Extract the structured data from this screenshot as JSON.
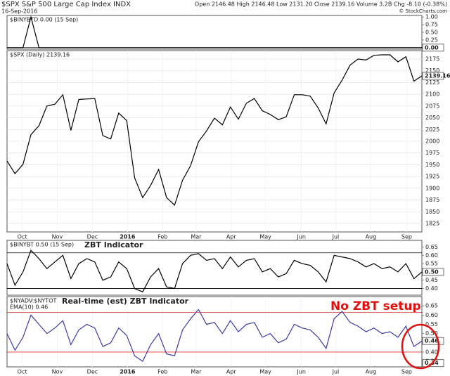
{
  "header": {
    "symbol": "$SPX S&P 500 Large Cap Index INDX",
    "date": "16-Sep-2016",
    "quote": "Open 2146.48 High 2146.48 Low 2131.20 Close 2139.16 Volume 3.2B Chg -8.10 (-0.38%)",
    "credit": "© StockCharts.com"
  },
  "chart_data": [
    {
      "type": "line",
      "legend": [
        "$BINYBTD 0.00 (15 Sep)"
      ],
      "xlim": [
        0,
        52
      ],
      "ylim": [
        -0.05,
        1.05
      ],
      "yticks": [
        {
          "value": 1,
          "label": "1.00"
        },
        {
          "value": 0.75,
          "label": "0.75"
        },
        {
          "value": 0.5,
          "label": "0.50"
        },
        {
          "value": 0.25,
          "label": "0.25"
        },
        {
          "value": 0,
          "label": "0.00"
        }
      ],
      "series": [
        {
          "color": "#000000",
          "values": [
            0,
            0,
            0,
            1,
            0,
            0,
            0,
            0,
            0,
            0,
            0,
            0,
            0,
            0,
            0,
            0,
            0,
            0,
            0,
            0,
            0,
            0,
            0,
            0,
            0,
            0,
            0,
            0,
            0,
            0,
            0,
            0,
            0,
            0,
            0,
            0,
            0,
            0,
            0,
            0,
            0,
            0,
            0,
            0,
            0,
            0,
            0,
            0,
            0,
            0,
            0,
            0,
            0
          ]
        }
      ],
      "last_label": {
        "value": 0,
        "label": "0.00"
      },
      "hlines": [
        0
      ],
      "hline_color": "#000000"
    },
    {
      "type": "line",
      "legend": [
        "$SPX (Daily) 2139.16"
      ],
      "xlim": [
        0,
        52
      ],
      "ylim": [
        1807,
        2193
      ],
      "yticks": [
        2175,
        2150,
        2125,
        2100,
        2075,
        2050,
        2025,
        2000,
        1975,
        1950,
        1925,
        1900,
        1875,
        1850,
        1825
      ],
      "xticks": [
        {
          "value": 1.9,
          "label": "Oct"
        },
        {
          "value": 6.3,
          "label": "Nov"
        },
        {
          "value": 10.7,
          "label": "Dec"
        },
        {
          "value": 15.1,
          "label": "2016"
        },
        {
          "value": 19.5,
          "label": "Feb"
        },
        {
          "value": 23.7,
          "label": "Mar"
        },
        {
          "value": 28.1,
          "label": "Apr"
        },
        {
          "value": 32.4,
          "label": "May"
        },
        {
          "value": 36.9,
          "label": "Jun"
        },
        {
          "value": 41.2,
          "label": "Jul"
        },
        {
          "value": 45.6,
          "label": "Aug"
        },
        {
          "value": 50.1,
          "label": "Sep"
        }
      ],
      "series": [
        {
          "color": "#000000",
          "values": [
            1958,
            1931,
            1951,
            2014,
            2033,
            2075,
            2079,
            2099,
            2023,
            2089,
            2090,
            2091,
            2012,
            2005,
            2060,
            2044,
            1922,
            1880,
            1906,
            1940,
            1880,
            1864,
            1917,
            1948,
            1999,
            2022,
            2049,
            2035,
            2073,
            2047,
            2081,
            2091,
            2065,
            2057,
            2046,
            2052,
            2099,
            2099,
            2096,
            2071,
            2037,
            2103,
            2130,
            2162,
            2175,
            2173,
            2183,
            2184,
            2184,
            2169,
            2180,
            2128,
            2139.16
          ]
        }
      ],
      "last_label": 2139.16,
      "grid": true
    },
    {
      "type": "line",
      "legend": [
        "$BINYBT 0.50 (15 Sep)"
      ],
      "title": "ZBT Indicator",
      "xlim": [
        0,
        52
      ],
      "ylim": [
        0.36,
        0.69
      ],
      "yticks": [
        0.65,
        {
          "value": 0.6,
          "label": "0.60"
        },
        0.55,
        {
          "value": 0.5,
          "label": "0.50"
        },
        0.45,
        {
          "value": 0.4,
          "label": "0.40"
        }
      ],
      "series": [
        {
          "color": "#000000",
          "values": [
            0.55,
            0.42,
            0.5,
            0.63,
            0.58,
            0.52,
            0.56,
            0.6,
            0.46,
            0.55,
            0.58,
            0.56,
            0.45,
            0.47,
            0.56,
            0.52,
            0.4,
            0.38,
            0.47,
            0.52,
            0.41,
            0.4,
            0.55,
            0.6,
            0.61,
            0.57,
            0.58,
            0.52,
            0.59,
            0.53,
            0.57,
            0.58,
            0.5,
            0.52,
            0.47,
            0.49,
            0.57,
            0.55,
            0.54,
            0.5,
            0.44,
            0.6,
            0.59,
            0.58,
            0.56,
            0.53,
            0.55,
            0.52,
            0.53,
            0.5,
            0.55,
            0.46,
            0.5
          ]
        }
      ],
      "last_label": {
        "value": 0.5,
        "label": "0.50"
      },
      "hlines": [
        0.615,
        0.4
      ],
      "hline_color": "#000000"
    },
    {
      "type": "line",
      "legend": [
        "$NYADV:$NYTOT",
        "EMA(10) 0.46"
      ],
      "title": "Real-time (est) ZBT Indicator",
      "annotation": "No ZBT setup",
      "xlim": [
        0,
        52
      ],
      "ylim": [
        0.32,
        0.7
      ],
      "yticks": [
        0.65,
        {
          "value": 0.6,
          "label": "0.60"
        },
        0.55,
        {
          "value": 0.5,
          "label": "0.50"
        },
        0.45,
        {
          "value": 0.4,
          "label": "0.40"
        },
        0.35
      ],
      "xticks": [
        {
          "value": 1.9,
          "label": "Oct"
        },
        {
          "value": 6.3,
          "label": "Nov"
        },
        {
          "value": 10.7,
          "label": "Dec"
        },
        {
          "value": 15.1,
          "label": "2016"
        },
        {
          "value": 19.5,
          "label": "Feb"
        },
        {
          "value": 23.7,
          "label": "Mar"
        },
        {
          "value": 28.1,
          "label": "Apr"
        },
        {
          "value": 32.4,
          "label": "May"
        },
        {
          "value": 36.9,
          "label": "Jun"
        },
        {
          "value": 41.2,
          "label": "Jul"
        },
        {
          "value": 45.6,
          "label": "Aug"
        },
        {
          "value": 50.1,
          "label": "Sep"
        }
      ],
      "series": [
        {
          "color": "#3a3aa8",
          "values": [
            0.5,
            0.41,
            0.48,
            0.6,
            0.55,
            0.5,
            0.53,
            0.57,
            0.44,
            0.52,
            0.55,
            0.53,
            0.43,
            0.45,
            0.53,
            0.49,
            0.38,
            0.35,
            0.44,
            0.5,
            0.39,
            0.38,
            0.52,
            0.58,
            0.63,
            0.55,
            0.56,
            0.5,
            0.57,
            0.51,
            0.55,
            0.56,
            0.48,
            0.5,
            0.45,
            0.47,
            0.55,
            0.53,
            0.52,
            0.48,
            0.42,
            0.58,
            0.62,
            0.56,
            0.54,
            0.51,
            0.53,
            0.5,
            0.51,
            0.48,
            0.54,
            0.43,
            0.46
          ]
        }
      ],
      "last_label": 0.46,
      "extra_label": 0.34,
      "hlines": [
        0.615,
        0.4
      ],
      "hline_color": "#e03030"
    }
  ]
}
